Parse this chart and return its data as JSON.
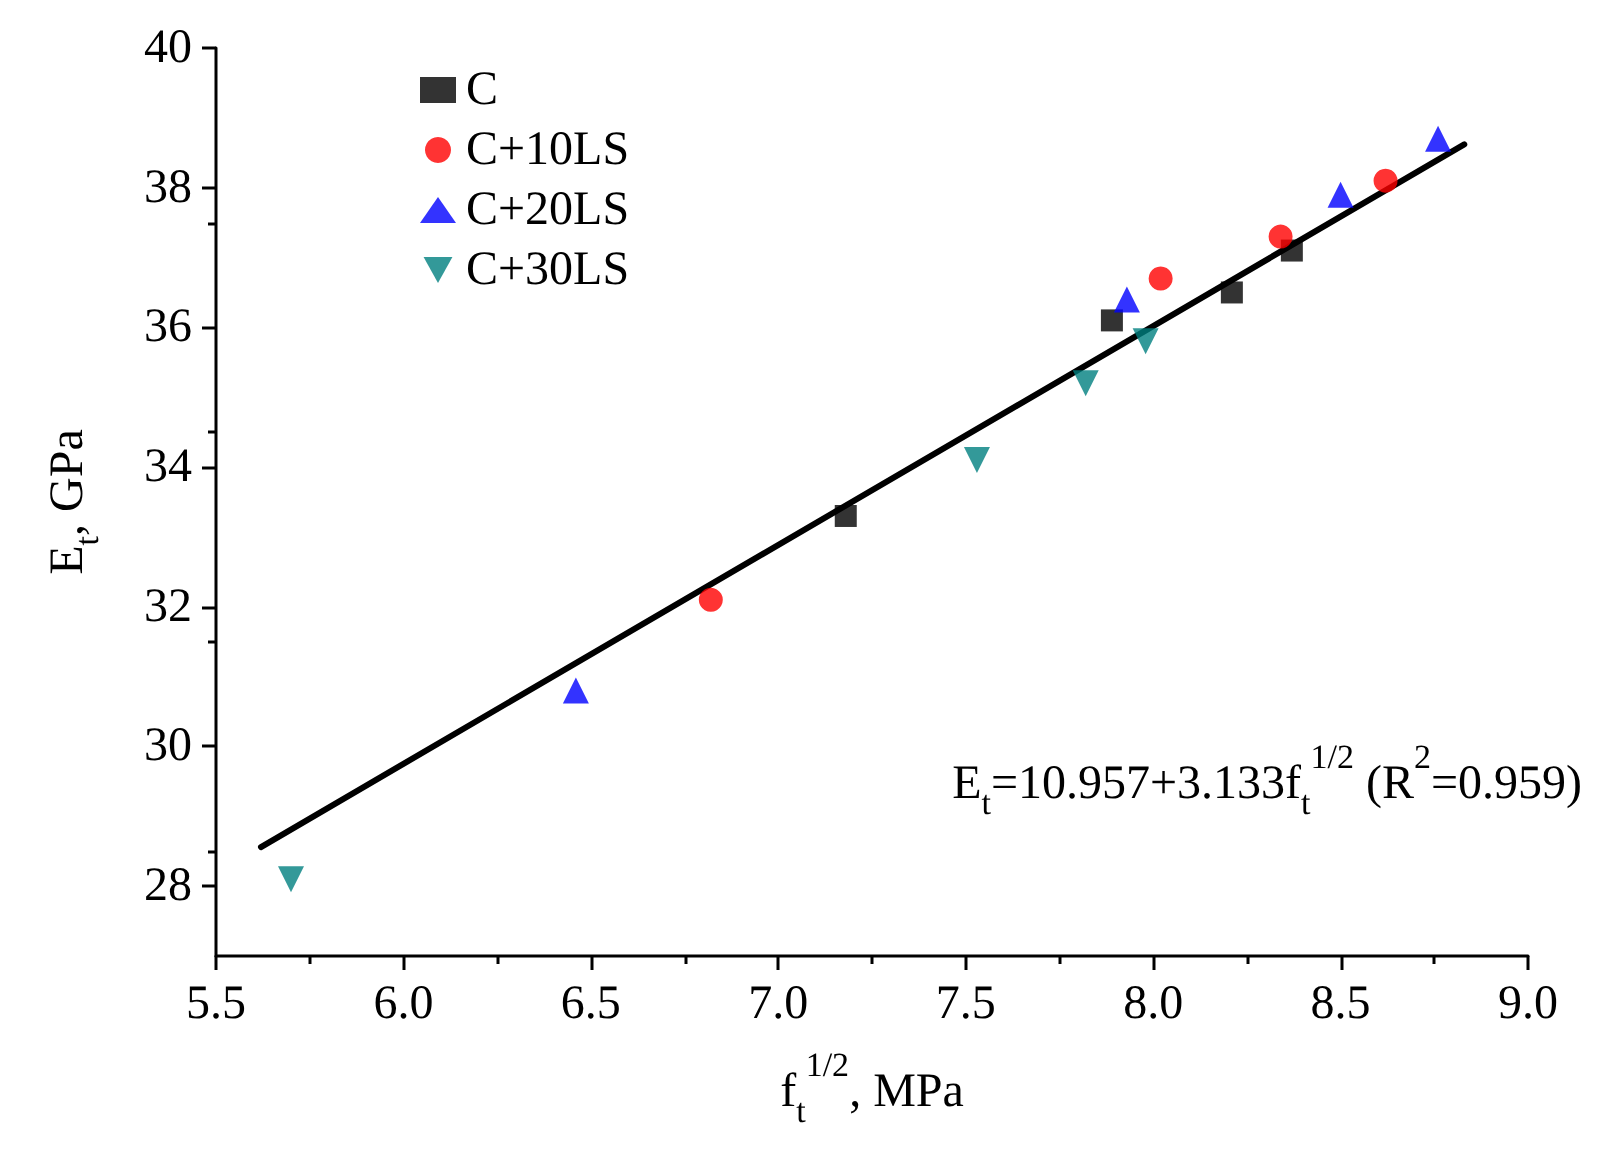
{
  "chart_data": {
    "type": "scatter",
    "xlabel": "f$_{t}$$^{1/2}$, MPa",
    "ylabel": "E$_{t}$, GPa",
    "xlim": [
      5.5,
      9.0
    ],
    "ylim": [
      27,
      40
    ],
    "xticks": [
      {
        "value": 5.5,
        "label": "5.5"
      },
      {
        "value": 6,
        "label": "6.0"
      },
      {
        "value": 6.5,
        "label": "6.5"
      },
      {
        "value": 7,
        "label": "7.0"
      },
      {
        "value": 7.5,
        "label": "7.5"
      },
      {
        "value": 8,
        "label": "8.0"
      },
      {
        "value": 8.5,
        "label": "8.5"
      },
      {
        "value": 9,
        "label": "9.0"
      }
    ],
    "yticks": [
      28,
      30,
      32,
      34,
      36,
      38,
      40
    ],
    "grid": false,
    "legend": "top left",
    "series": [
      {
        "name": "C",
        "color": "#000000",
        "marker": "square",
        "x": [
          7.18,
          7.89,
          8.21,
          8.37
        ],
        "values": [
          33.3,
          36.1,
          36.5,
          37.1
        ]
      },
      {
        "name": "C+10LS",
        "color": "#ff0000",
        "marker": "circle",
        "x": [
          6.82,
          8.02,
          8.34,
          8.62
        ],
        "values": [
          32.1,
          36.7,
          37.3,
          38.1
        ]
      },
      {
        "name": "C+20LS",
        "color": "#0000ff",
        "marker": "triangle",
        "x": [
          6.46,
          7.93,
          8.5,
          8.76
        ],
        "values": [
          30.8,
          36.4,
          37.9,
          38.7
        ]
      },
      {
        "name": "C+30LS",
        "color": "#008080",
        "marker": "triangle-down",
        "x": [
          5.7,
          7.53,
          7.82,
          7.98
        ],
        "values": [
          28.1,
          34.1,
          35.2,
          35.8
        ]
      },
      {
        "type": "line",
        "color": "#000000",
        "marker": "none",
        "line_style": "solid",
        "x": [
          5.62,
          8.83
        ],
        "values": [
          28.56,
          38.62
        ]
      }
    ],
    "annotations": [
      "E$_{t}$=10.957+3.133f$_{t}$$^{1/2}$ (R$^{2}$=0.959)"
    ]
  }
}
